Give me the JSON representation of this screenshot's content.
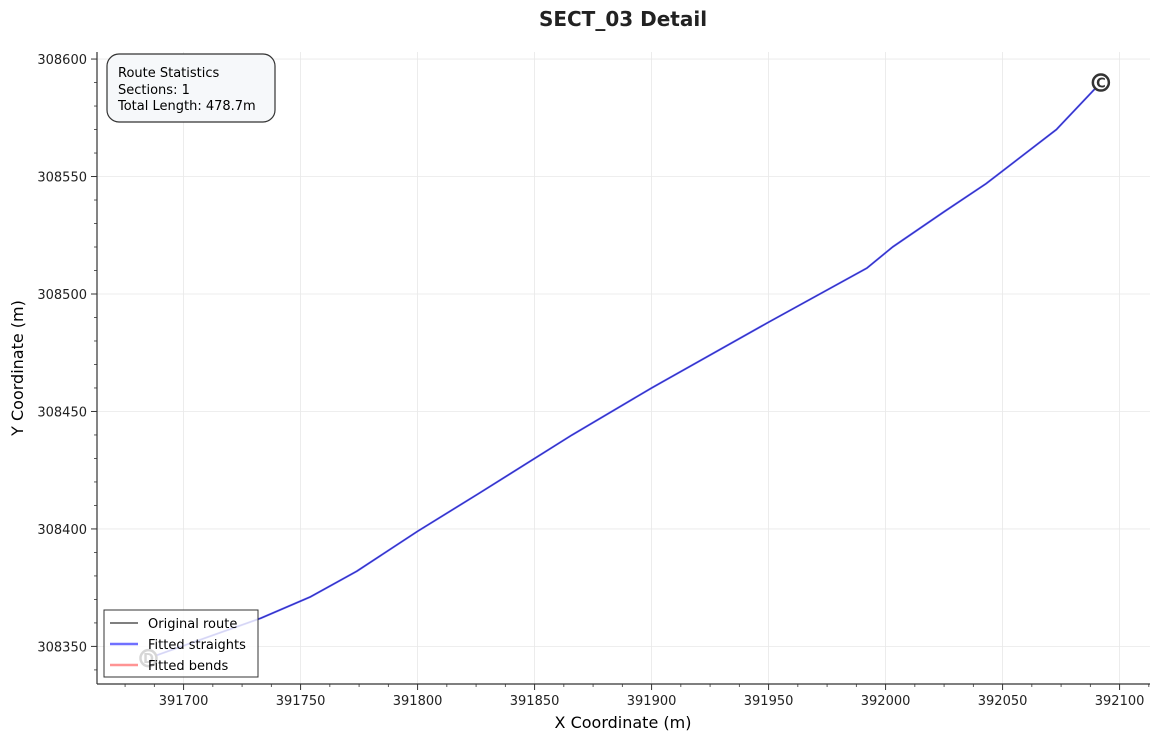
{
  "chart_data": {
    "type": "line",
    "title": "SECT_03 Detail",
    "xlabel": "X Coordinate (m)",
    "ylabel": "Y Coordinate (m)",
    "xlim": [
      391663,
      392113
    ],
    "ylim": [
      308334,
      308603
    ],
    "xticks": [
      391700,
      391750,
      391800,
      391850,
      391900,
      391950,
      392000,
      392050,
      392100
    ],
    "yticks": [
      308350,
      308400,
      308450,
      308500,
      308550,
      308600
    ],
    "xtick_labels": [
      "391700",
      "391750",
      "391800",
      "391850",
      "391900",
      "391950",
      "392000",
      "392050",
      "392100"
    ],
    "ytick_labels": [
      "308350",
      "308400",
      "308450",
      "308500",
      "308550",
      "308600"
    ],
    "grid": true,
    "legend_placement": "lower-left",
    "series": [
      {
        "name": "Original route",
        "color": "#333333",
        "x": [
          391685,
          391733,
          391754,
          391774,
          391800,
          391826,
          391866,
          391900,
          391950,
          391992,
          392003,
          392025,
          392043,
          392073,
          392092
        ],
        "y": [
          308345,
          308362,
          308371,
          308382,
          308399,
          308415,
          308440,
          308460,
          308488,
          308511,
          308520,
          308535,
          308547,
          308570,
          308590
        ]
      },
      {
        "name": "Fitted straights",
        "color": "#3333ff",
        "x": [
          391685,
          391733,
          391754,
          391774,
          391800,
          391826,
          391866,
          391900,
          391950,
          391992,
          392003,
          392025,
          392043,
          392073,
          392092
        ],
        "y": [
          308345,
          308362,
          308371,
          308382,
          308399,
          308415,
          308440,
          308460,
          308488,
          308511,
          308520,
          308535,
          308547,
          308570,
          308590
        ]
      },
      {
        "name": "Fitted bends",
        "color": "#ff6666",
        "x": [],
        "y": []
      }
    ],
    "annotations": [
      {
        "label": "C",
        "x": 392092,
        "y": 308590
      },
      {
        "label": "D",
        "x": 391685,
        "y": 308345
      }
    ],
    "stats_box": {
      "title": "Route Statistics",
      "sections": "Sections: 1",
      "total_length": "Total Length: 478.7m"
    }
  }
}
